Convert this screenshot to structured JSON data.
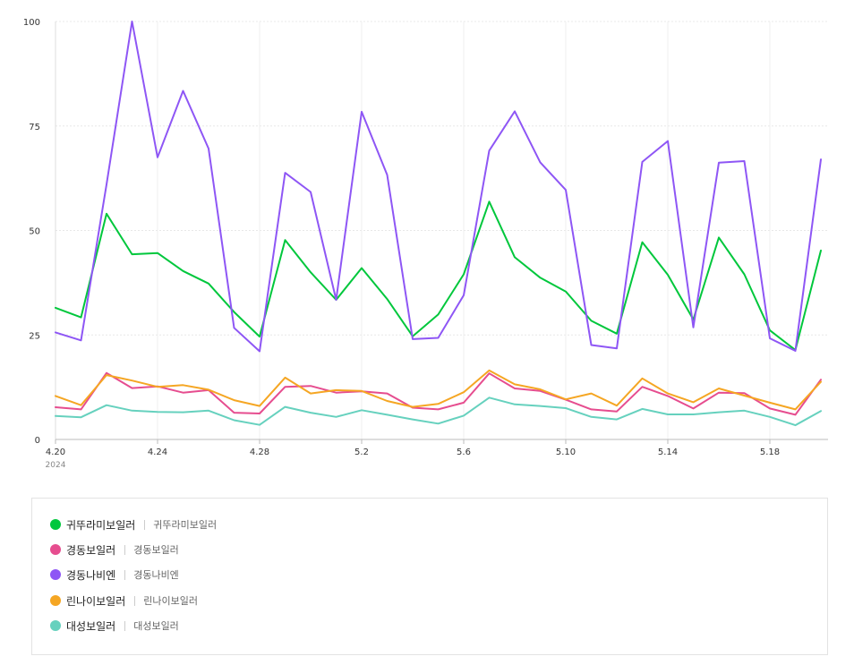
{
  "chart_data": {
    "type": "line",
    "x": [
      "2024-04-20",
      "2024-04-21",
      "2024-04-22",
      "2024-04-23",
      "2024-04-24",
      "2024-04-25",
      "2024-04-26",
      "2024-04-27",
      "2024-04-28",
      "2024-04-29",
      "2024-04-30",
      "2024-05-01",
      "2024-05-02",
      "2024-05-03",
      "2024-05-04",
      "2024-05-05",
      "2024-05-06",
      "2024-05-07",
      "2024-05-08",
      "2024-05-09",
      "2024-05-10",
      "2024-05-11",
      "2024-05-12",
      "2024-05-13",
      "2024-05-14",
      "2024-05-15",
      "2024-05-16",
      "2024-05-17",
      "2024-05-18",
      "2024-05-19",
      "2024-05-20"
    ],
    "x_tick_labels": [
      "4.20",
      "4.24",
      "4.28",
      "5.2",
      "5.6",
      "5.10",
      "5.14",
      "5.18"
    ],
    "x_tick_indices": [
      0,
      4,
      8,
      12,
      16,
      20,
      24,
      28
    ],
    "x_year_label": "2024",
    "y_ticks": [
      "0",
      "25",
      "50",
      "75",
      "100"
    ],
    "ylim": [
      0,
      100
    ],
    "grid": true,
    "legend_position": "bottom",
    "series": [
      {
        "name": "귀뚜라미보일러",
        "sub": "귀뚜라미보일러",
        "color": "#00c73c",
        "values": [
          31.5,
          29.2,
          54,
          44.3,
          44.6,
          40.3,
          37.3,
          30.5,
          24.6,
          47.7,
          40,
          33.4,
          41,
          33.6,
          24.7,
          29.9,
          39.5,
          56.9,
          43.6,
          38.7,
          35.4,
          28.4,
          25.3,
          47.2,
          39.4,
          28.7,
          48.3,
          39.5,
          26.1,
          21.4,
          45.2
        ]
      },
      {
        "name": "경동보일러",
        "sub": "경동보일러",
        "color": "#e64d8f",
        "values": [
          7.7,
          7.2,
          15.9,
          12.3,
          12.7,
          11.2,
          11.8,
          6.4,
          6.2,
          12.6,
          12.8,
          11.2,
          11.5,
          11,
          7.6,
          7.2,
          8.8,
          15.8,
          12.2,
          11.6,
          9.5,
          7.2,
          6.7,
          12.6,
          10.4,
          7.4,
          11.2,
          11.1,
          7.4,
          5.9,
          14.3
        ]
      },
      {
        "name": "경동나비엔",
        "sub": "경동나비엔",
        "color": "#8e56f5",
        "values": [
          25.6,
          23.7,
          61,
          100,
          67.5,
          83.4,
          69.6,
          26.7,
          21.1,
          63.8,
          59.2,
          33.4,
          78.4,
          63.3,
          24,
          24.3,
          34.5,
          69.1,
          78.5,
          66.3,
          59.7,
          22.6,
          21.8,
          66.4,
          71.4,
          26.8,
          66.2,
          66.6,
          24.2,
          21.2,
          67
        ]
      },
      {
        "name": "린나이보일러",
        "sub": "린나이보일러",
        "color": "#f5a623",
        "values": [
          10.4,
          8.2,
          15.4,
          14.1,
          12.6,
          13,
          11.9,
          9.4,
          8,
          14.8,
          11,
          11.8,
          11.6,
          9.2,
          7.8,
          8.5,
          11.3,
          16.5,
          13.2,
          12,
          9.6,
          11,
          8.1,
          14.6,
          11,
          8.9,
          12.2,
          10.5,
          8.8,
          7.2,
          13.8
        ]
      },
      {
        "name": "대성보일러",
        "sub": "대성보일러",
        "color": "#66d1be",
        "values": [
          5.6,
          5.3,
          8.2,
          6.9,
          6.6,
          6.5,
          6.9,
          4.6,
          3.5,
          7.8,
          6.4,
          5.4,
          7,
          5.9,
          4.8,
          3.8,
          5.7,
          10,
          8.4,
          8,
          7.5,
          5.4,
          4.8,
          7.3,
          6,
          6,
          6.5,
          6.9,
          5.4,
          3.4,
          6.8
        ]
      }
    ]
  }
}
